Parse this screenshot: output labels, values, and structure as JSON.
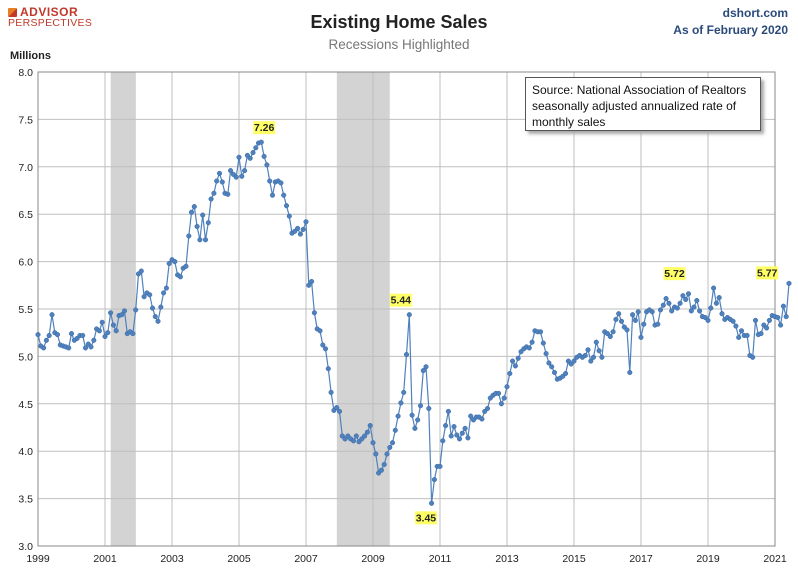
{
  "header": {
    "brand_line1": "ADVISOR",
    "brand_line2": "PERSPECTIVES",
    "site": "dshort.com",
    "as_of": "As of February 2020"
  },
  "chart_data": {
    "type": "line",
    "title": "Existing Home Sales",
    "subtitle": "Recessions Highlighted",
    "ylabel": "Millions",
    "xlabel": "",
    "source_note": "Source: National Association of Realtors seasonally adjusted annualized rate of monthly sales",
    "xlim": [
      1999,
      2021
    ],
    "ylim": [
      3.0,
      8.0
    ],
    "x_ticks": [
      1999,
      2001,
      2003,
      2005,
      2007,
      2009,
      2011,
      2013,
      2015,
      2017,
      2019,
      2021
    ],
    "y_ticks": [
      "3.0",
      "3.5",
      "4.0",
      "4.5",
      "5.0",
      "5.5",
      "6.0",
      "6.5",
      "7.0",
      "7.5",
      "8.0"
    ],
    "grid": true,
    "legend": "none",
    "line_color": "#4f81bd",
    "recession_color": "#d3d3d3",
    "recessions": [
      [
        2001.17,
        2001.92
      ],
      [
        2007.92,
        2009.5
      ]
    ],
    "start": "1999-01",
    "monthly_values": [
      5.23,
      5.11,
      5.09,
      5.17,
      5.22,
      5.44,
      5.25,
      5.23,
      5.12,
      5.11,
      5.1,
      5.09,
      5.24,
      5.17,
      5.19,
      5.22,
      5.22,
      5.09,
      5.13,
      5.1,
      5.17,
      5.29,
      5.27,
      5.36,
      5.21,
      5.25,
      5.46,
      5.33,
      5.27,
      5.43,
      5.44,
      5.48,
      5.24,
      5.26,
      5.24,
      5.49,
      5.87,
      5.9,
      5.63,
      5.67,
      5.65,
      5.51,
      5.42,
      5.37,
      5.52,
      5.67,
      5.72,
      5.98,
      6.02,
      6.0,
      5.86,
      5.84,
      5.93,
      5.95,
      6.27,
      6.52,
      6.58,
      6.37,
      6.23,
      6.49,
      6.23,
      6.41,
      6.66,
      6.72,
      6.85,
      6.93,
      6.84,
      6.72,
      6.71,
      6.96,
      6.92,
      6.89,
      7.1,
      6.9,
      6.96,
      7.12,
      7.09,
      7.15,
      7.2,
      7.25,
      7.26,
      7.11,
      7.02,
      6.85,
      6.7,
      6.84,
      6.85,
      6.83,
      6.7,
      6.59,
      6.48,
      6.3,
      6.32,
      6.35,
      6.29,
      6.34,
      6.42,
      5.75,
      5.79,
      5.46,
      5.29,
      5.27,
      5.12,
      5.08,
      4.87,
      4.62,
      4.43,
      4.46,
      4.42,
      4.16,
      4.13,
      4.16,
      4.13,
      4.11,
      4.16,
      4.1,
      4.13,
      4.16,
      4.2,
      4.27,
      4.09,
      3.97,
      3.77,
      3.8,
      3.86,
      3.97,
      4.04,
      4.09,
      4.22,
      4.37,
      4.51,
      4.62,
      5.02,
      5.44,
      4.38,
      4.24,
      4.33,
      4.48,
      4.85,
      4.89,
      4.45,
      3.45,
      3.7,
      3.84,
      3.84,
      4.11,
      4.27,
      4.42,
      4.16,
      4.26,
      4.17,
      4.13,
      4.19,
      4.24,
      4.14,
      4.37,
      4.33,
      4.36,
      4.36,
      4.34,
      4.42,
      4.45,
      4.56,
      4.59,
      4.61,
      4.61,
      4.5,
      4.56,
      4.68,
      4.82,
      4.95,
      4.9,
      4.98,
      5.05,
      5.08,
      5.1,
      5.09,
      5.15,
      5.27,
      5.26,
      5.26,
      5.14,
      5.03,
      4.93,
      4.89,
      4.83,
      4.76,
      4.77,
      4.79,
      4.82,
      4.95,
      4.92,
      4.95,
      4.99,
      5.01,
      4.99,
      5.01,
      5.07,
      4.95,
      4.99,
      5.15,
      5.06,
      4.99,
      5.26,
      5.24,
      5.21,
      5.26,
      5.39,
      5.45,
      5.37,
      5.31,
      5.28,
      4.83,
      5.44,
      5.38,
      5.47,
      5.2,
      5.34,
      5.47,
      5.49,
      5.47,
      5.33,
      5.34,
      5.49,
      5.54,
      5.61,
      5.56,
      5.48,
      5.52,
      5.51,
      5.56,
      5.64,
      5.6,
      5.66,
      5.48,
      5.52,
      5.59,
      5.48,
      5.42,
      5.41,
      5.38,
      5.51,
      5.72,
      5.56,
      5.62,
      5.45,
      5.39,
      5.41,
      5.39,
      5.37,
      5.32,
      5.2,
      5.27,
      5.22,
      5.22,
      5.01,
      4.99,
      5.38,
      5.23,
      5.24,
      5.33,
      5.3,
      5.38,
      5.43,
      5.42,
      5.41,
      5.33,
      5.53,
      5.42,
      5.77
    ],
    "annotations": [
      {
        "label": "7.26",
        "x": 2005.75,
        "y": 7.26,
        "pos": "above"
      },
      {
        "label": "5.44",
        "x": 2009.83,
        "y": 5.44,
        "pos": "above"
      },
      {
        "label": "3.45",
        "x": 2010.58,
        "y": 3.45,
        "pos": "below"
      },
      {
        "label": "5.72",
        "x": 2018.0,
        "y": 5.72,
        "pos": "above"
      },
      {
        "label": "5.77",
        "x": 2020.08,
        "y": 5.77,
        "pos": "right"
      }
    ]
  }
}
